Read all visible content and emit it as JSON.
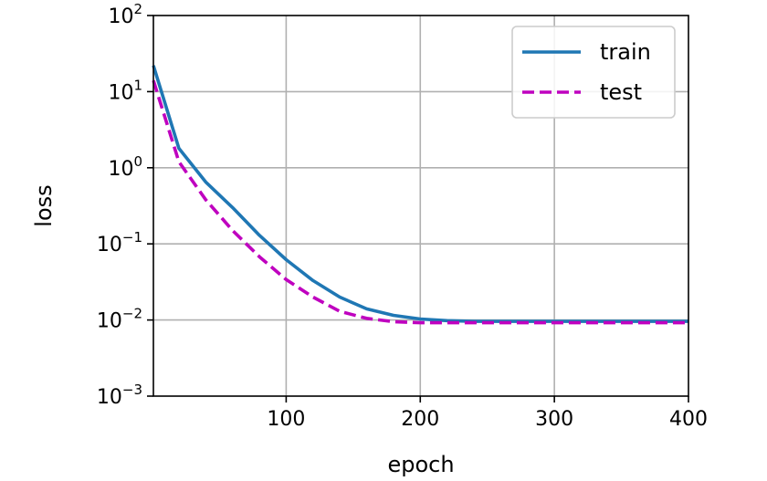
{
  "chart_data": {
    "type": "line",
    "xlabel": "epoch",
    "ylabel": "loss",
    "xlim": [
      1,
      400
    ],
    "ylim": [
      0.001,
      100
    ],
    "yscale": "log",
    "grid": true,
    "legend_position": "top-right",
    "x_ticks": [
      {
        "value": 100,
        "label": "100"
      },
      {
        "value": 200,
        "label": "200"
      },
      {
        "value": 300,
        "label": "300"
      },
      {
        "value": 400,
        "label": "400"
      }
    ],
    "y_ticks": [
      {
        "value": 0.001,
        "base": "10",
        "exp": "−3"
      },
      {
        "value": 0.01,
        "base": "10",
        "exp": "−2"
      },
      {
        "value": 0.1,
        "base": "10",
        "exp": "−1"
      },
      {
        "value": 1,
        "base": "10",
        "exp": "0"
      },
      {
        "value": 10,
        "base": "10",
        "exp": "1"
      },
      {
        "value": 100,
        "base": "10",
        "exp": "2"
      }
    ],
    "x": [
      1,
      20,
      40,
      60,
      80,
      100,
      120,
      140,
      160,
      180,
      200,
      220,
      240,
      260,
      280,
      300,
      320,
      340,
      360,
      380,
      400
    ],
    "series": [
      {
        "name": "train",
        "color": "#1f77b4",
        "dash": "solid",
        "values": [
          22,
          1.8,
          0.65,
          0.3,
          0.13,
          0.062,
          0.033,
          0.02,
          0.014,
          0.0115,
          0.0103,
          0.0098,
          0.0096,
          0.0096,
          0.0096,
          0.0096,
          0.0096,
          0.0096,
          0.0096,
          0.0096,
          0.0096
        ]
      },
      {
        "name": "test",
        "color": "#bf00bf",
        "dash": "dashed",
        "values": [
          14,
          1.2,
          0.38,
          0.15,
          0.068,
          0.034,
          0.02,
          0.013,
          0.0105,
          0.0095,
          0.0092,
          0.0092,
          0.0092,
          0.0092,
          0.0092,
          0.0092,
          0.0092,
          0.0092,
          0.0092,
          0.0092,
          0.0092
        ]
      }
    ]
  }
}
